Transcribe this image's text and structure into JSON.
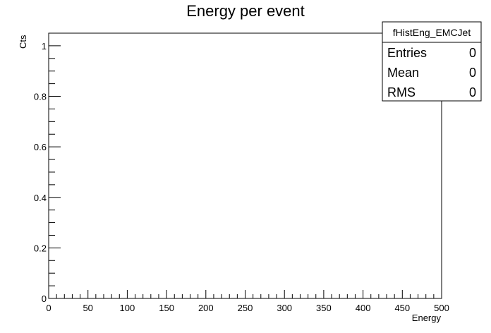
{
  "chart_data": {
    "type": "bar",
    "title": "Energy per event",
    "xlabel": "Energy",
    "ylabel": "Cts",
    "xlim": [
      0,
      500
    ],
    "ylim": [
      0,
      1.05
    ],
    "x_major_ticks": [
      0,
      50,
      100,
      150,
      200,
      250,
      300,
      350,
      400,
      450,
      500
    ],
    "y_major_ticks": [
      0,
      0.2,
      0.4,
      0.6,
      0.8,
      1
    ],
    "x_tick_labels": [
      "0",
      "50",
      "100",
      "150",
      "200",
      "250",
      "300",
      "350",
      "400",
      "450",
      "500"
    ],
    "y_tick_labels": [
      "0",
      "0.2",
      "0.4",
      "0.6",
      "0.8",
      "1"
    ],
    "series": [],
    "grid": false,
    "stats_box": {
      "name": "fHistEng_EMCJet",
      "placement": "top-right",
      "rows": [
        {
          "label": "Entries",
          "value": "0"
        },
        {
          "label": "Mean",
          "value": "0"
        },
        {
          "label": "RMS",
          "value": "0"
        }
      ]
    }
  }
}
